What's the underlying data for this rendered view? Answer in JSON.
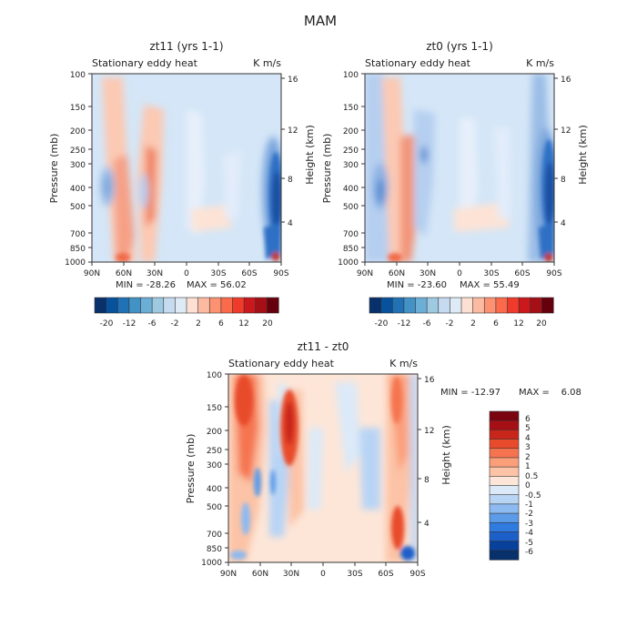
{
  "figure_title": "MAM",
  "colorbar_levels_top": [
    "-20",
    "-12",
    "-6",
    "-2",
    "2",
    "6",
    "12",
    "20"
  ],
  "colorbar_levels_diff": [
    "6",
    "5",
    "4",
    "3",
    "2",
    "1",
    "0.5",
    "0",
    "-0.5",
    "-1",
    "-2",
    "-3",
    "-4",
    "-5",
    "-6"
  ],
  "colors": {
    "top_scale": [
      "#08306b",
      "#08519c",
      "#2171b5",
      "#4292c6",
      "#6baed6",
      "#9ecae1",
      "#c6dbef",
      "#deebf7",
      "#fde0d2",
      "#fcbba1",
      "#fc9272",
      "#fb6a4a",
      "#ef3b2c",
      "#cb181d",
      "#a50f15",
      "#67000d"
    ],
    "diff_scale": [
      "#08306b",
      "#08419c",
      "#1c5fc9",
      "#2f7be0",
      "#5b9be8",
      "#8dbaf0",
      "#b8d4f5",
      "#dbe9f8",
      "#fde6d8",
      "#fcc3a6",
      "#fb9e7a",
      "#f5744f",
      "#e84b2c",
      "#c9261b",
      "#a50f15",
      "#7a0510"
    ]
  },
  "chart_data": [
    {
      "type": "heatmap",
      "title": "zt11 (yrs 1-1)",
      "subtitle_left": "Stationary eddy heat",
      "subtitle_right": "K m/s",
      "ylabel": "Pressure (mb)",
      "ylabel_right": "Height (km)",
      "x_ticks": [
        "90N",
        "60N",
        "30N",
        "0",
        "30S",
        "60S",
        "90S"
      ],
      "y_ticks": [
        "100",
        "150",
        "200",
        "250",
        "300",
        "400",
        "500",
        "700",
        "850",
        "1000"
      ],
      "y_right_ticks": [
        "16",
        "12",
        "8",
        "4"
      ],
      "min_label": "MIN = -28.26",
      "max_label": "MAX = 56.02",
      "min": -28.26,
      "max": 56.02
    },
    {
      "type": "heatmap",
      "title": "zt0 (yrs 1-1)",
      "subtitle_left": "Stationary eddy heat",
      "subtitle_right": "K m/s",
      "ylabel": "Pressure (mb)",
      "ylabel_right": "Height (km)",
      "x_ticks": [
        "90N",
        "60N",
        "30N",
        "0",
        "30S",
        "60S",
        "90S"
      ],
      "y_ticks": [
        "100",
        "150",
        "200",
        "250",
        "300",
        "400",
        "500",
        "700",
        "850",
        "1000"
      ],
      "y_right_ticks": [
        "16",
        "12",
        "8",
        "4"
      ],
      "min_label": "MIN = -23.60",
      "max_label": "MAX = 55.49",
      "min": -23.6,
      "max": 55.49
    },
    {
      "type": "heatmap",
      "title": "zt11 - zt0",
      "subtitle_left": "Stationary eddy heat",
      "subtitle_right": "K m/s",
      "ylabel": "Pressure (mb)",
      "ylabel_right": "Height (km)",
      "x_ticks": [
        "90N",
        "60N",
        "30N",
        "0",
        "30S",
        "60S",
        "90S"
      ],
      "y_ticks": [
        "100",
        "150",
        "200",
        "250",
        "300",
        "400",
        "500",
        "700",
        "850",
        "1000"
      ],
      "y_right_ticks": [
        "16",
        "12",
        "8",
        "4"
      ],
      "min_label": "MIN = -12.97",
      "max_label": "MAX =    6.08",
      "min": -12.97,
      "max": 6.08
    }
  ]
}
